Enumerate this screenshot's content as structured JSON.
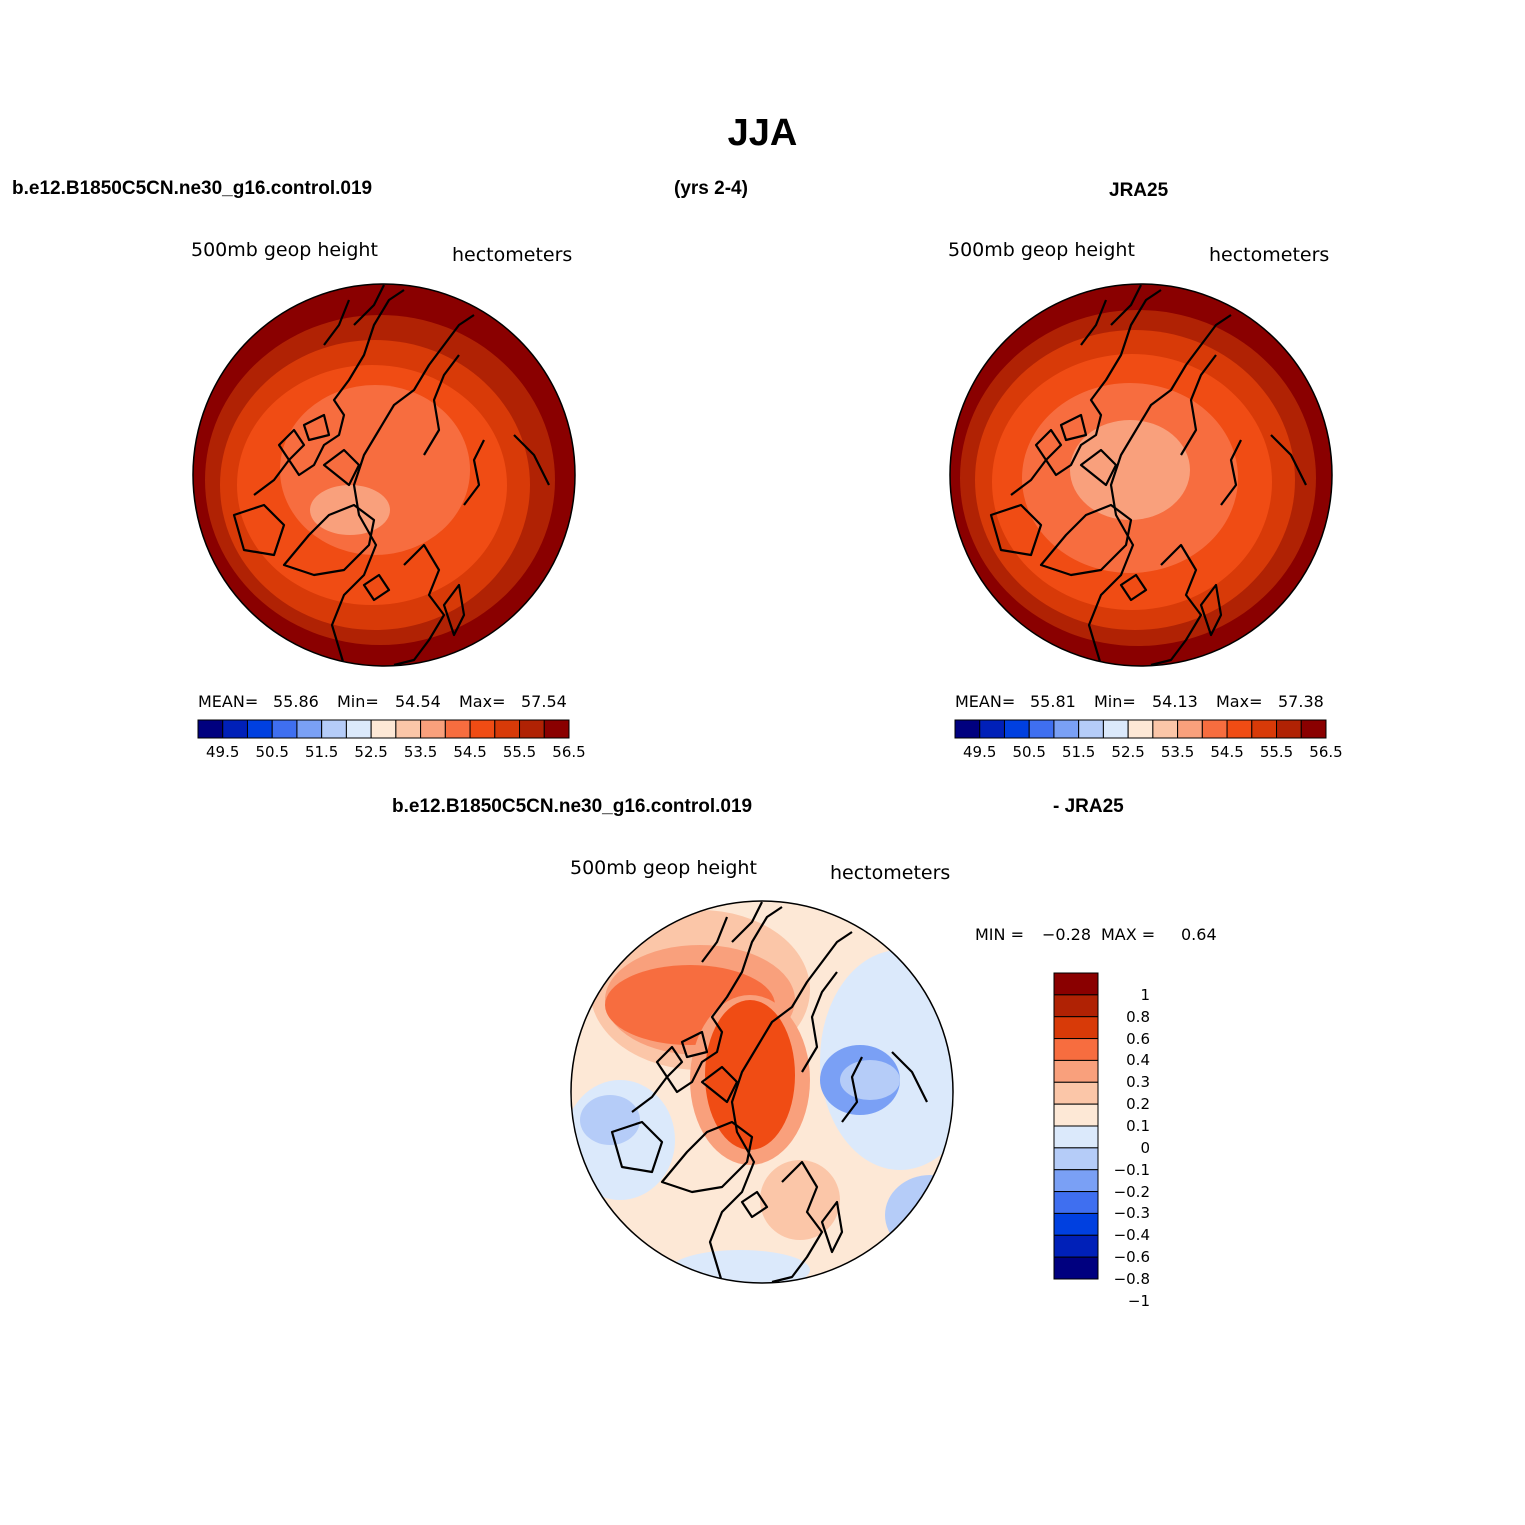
{
  "title": "JJA",
  "top_headers": {
    "case": "b.e12.B1850C5CN.ne30_g16.control.019",
    "years": "(yrs 2-4)",
    "obs": "JRA25"
  },
  "panel_model": {
    "field_label": "500mb geop height",
    "units_label": "hectometers",
    "mean_label": "MEAN=",
    "mean_value": "55.86",
    "min_label": "Min=",
    "min_value": "54.54",
    "max_label": "Max=",
    "max_value": "57.54"
  },
  "panel_obs": {
    "field_label": "500mb geop height",
    "units_label": "hectometers",
    "mean_label": "MEAN=",
    "mean_value": "55.81",
    "min_label": "Min=",
    "min_value": "54.13",
    "max_label": "Max=",
    "max_value": "57.38"
  },
  "absolute_colorbar": {
    "colors": [
      "#00007f",
      "#0020b8",
      "#0040e0",
      "#3f6ff0",
      "#7aa0f5",
      "#b5ccf8",
      "#dbe9fb",
      "#fde8d6",
      "#fbc6a8",
      "#f9a07c",
      "#f76d3f",
      "#f04c14",
      "#d83a08",
      "#b02204",
      "#8a0000"
    ],
    "tick_labels": [
      "49.5",
      "50.5",
      "51.5",
      "52.5",
      "53.5",
      "54.5",
      "55.5",
      "56.5"
    ]
  },
  "diff_headers": {
    "left": "b.e12.B1850C5CN.ne30_g16.control.019",
    "right": "- JRA25"
  },
  "panel_diff": {
    "field_label": "500mb geop height",
    "units_label": "hectometers",
    "min_label": "MIN =",
    "min_value": "−0.28",
    "max_label": "MAX =",
    "max_value": "0.64"
  },
  "diff_colorbar": {
    "colors": [
      "#8a0000",
      "#b02204",
      "#d83a08",
      "#f76d3f",
      "#f9a07c",
      "#fbc6a8",
      "#fde8d6",
      "#dbe9fb",
      "#b5ccf8",
      "#7aa0f5",
      "#3f6ff0",
      "#0040e0",
      "#0020b8",
      "#00007f"
    ],
    "tick_labels": [
      "1",
      "0.8",
      "0.6",
      "0.4",
      "0.3",
      "0.2",
      "0.1",
      "0",
      "−0.1",
      "−0.2",
      "−0.3",
      "−0.4",
      "−0.6",
      "−0.8",
      "−1"
    ]
  }
}
